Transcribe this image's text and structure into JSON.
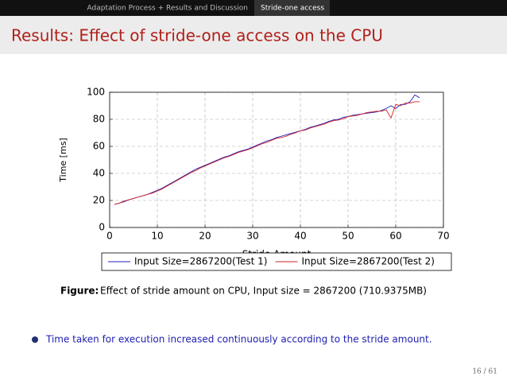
{
  "nav": {
    "section": "Adaptation Process + Results and Discussion",
    "subsection": "Stride-one access"
  },
  "title": "Results: Effect of stride-one access on the CPU",
  "chart_data": {
    "type": "line",
    "ylabel": "Time [ms]",
    "xlabel": "Stride Amount",
    "x": [
      1,
      2,
      3,
      4,
      5,
      6,
      7,
      8,
      9,
      10,
      11,
      12,
      13,
      14,
      15,
      16,
      17,
      18,
      19,
      20,
      21,
      22,
      23,
      24,
      25,
      26,
      27,
      28,
      29,
      30,
      31,
      32,
      33,
      34,
      35,
      36,
      37,
      38,
      39,
      40,
      41,
      42,
      43,
      44,
      45,
      46,
      47,
      48,
      49,
      50,
      51,
      52,
      53,
      54,
      55,
      56,
      57,
      58,
      59,
      60,
      61,
      62,
      63,
      64,
      65
    ],
    "series": [
      {
        "name": "Input Size=2867200(Test 1)",
        "color": "#2020c0",
        "values": [
          17,
          18,
          19,
          20.5,
          21.5,
          22.5,
          23.5,
          24.5,
          26,
          27.5,
          29,
          31,
          33,
          35,
          37,
          39,
          41,
          43,
          44.5,
          46,
          47.5,
          49,
          50.5,
          52,
          53,
          54.5,
          56,
          57,
          58,
          59.5,
          61,
          62.5,
          64,
          65,
          66.5,
          67.5,
          68.5,
          69.5,
          70.5,
          71.5,
          72.5,
          74,
          75,
          76,
          77,
          78.5,
          79.5,
          80,
          81.5,
          82,
          83,
          83.5,
          84,
          84.5,
          85,
          85.5,
          86.5,
          88,
          90,
          88,
          91,
          91,
          93,
          98,
          96
        ]
      },
      {
        "name": "Input Size=2867200(Test 2)",
        "color": "#d02020",
        "values": [
          17,
          18,
          19.5,
          20.5,
          21.5,
          22.5,
          23.5,
          24.5,
          25.5,
          27,
          28.5,
          30.5,
          32.5,
          34.5,
          36.5,
          38.5,
          40.5,
          42,
          44,
          45.5,
          47,
          48.5,
          50,
          51.5,
          52.5,
          54,
          55.5,
          56.5,
          57.5,
          59,
          60.5,
          62,
          63,
          64.5,
          66,
          66.5,
          67.5,
          69,
          70,
          71.5,
          72,
          73.5,
          74.5,
          75.5,
          76.5,
          78,
          79,
          79.5,
          80.5,
          82,
          82.5,
          83,
          84,
          85,
          85.5,
          86,
          86,
          87,
          81,
          91,
          90,
          92,
          92,
          93,
          93
        ]
      }
    ],
    "xlim": [
      0,
      70
    ],
    "xticks": [
      0,
      10,
      20,
      30,
      40,
      50,
      60,
      70
    ],
    "ylim": [
      0,
      100
    ],
    "yticks": [
      0,
      20,
      40,
      60,
      80,
      100
    ],
    "grid": true
  },
  "caption": {
    "label": "Figure:",
    "text": "Effect of stride amount on CPU, Input size = 2867200 (710.9375MB)"
  },
  "bullet": "Time taken for execution increased continuously according to the stride amount.",
  "page": "16 / 61"
}
